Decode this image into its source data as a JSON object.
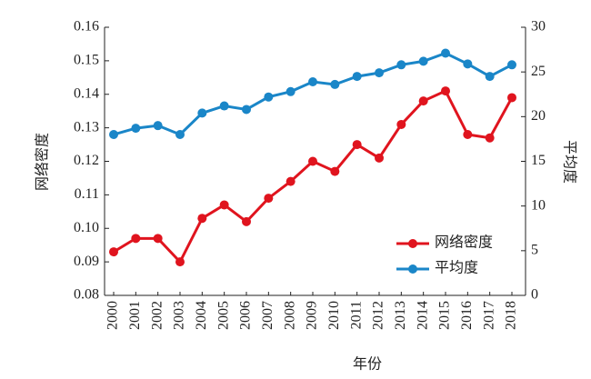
{
  "chart_data": {
    "type": "line",
    "categories": [
      "2000",
      "2001",
      "2002",
      "2003",
      "2004",
      "2005",
      "2006",
      "2007",
      "2008",
      "2009",
      "2010",
      "2011",
      "2012",
      "2013",
      "2014",
      "2015",
      "2016",
      "2017",
      "2018"
    ],
    "series": [
      {
        "name": "网络密度",
        "color": "#e0141e",
        "values": [
          0.093,
          0.097,
          0.097,
          0.09,
          0.103,
          0.107,
          0.102,
          0.109,
          0.114,
          0.12,
          0.117,
          0.125,
          0.121,
          0.131,
          0.138,
          0.141,
          0.128,
          0.127,
          0.139
        ]
      },
      {
        "name": "平均度",
        "color": "#1a86c8",
        "axis": "y2",
        "values": [
          18.0,
          18.7,
          19.0,
          18.0,
          20.4,
          21.2,
          20.8,
          22.2,
          22.8,
          23.9,
          23.6,
          24.5,
          24.9,
          25.8,
          26.2,
          27.1,
          25.9,
          24.5,
          25.8
        ]
      }
    ],
    "xlabel": "年份",
    "ylabel": "网络密度",
    "y2label": "平均度",
    "ylim": [
      0.08,
      0.16
    ],
    "yticks": [
      0.08,
      0.09,
      {
        "value": 0.1,
        "label": "0.10"
      },
      0.11,
      0.12,
      0.13,
      0.14,
      0.15,
      0.16
    ],
    "y2lim": [
      0,
      30
    ],
    "y2ticks": [
      0,
      5,
      10,
      15,
      20,
      25,
      30
    ],
    "legend": "lower right"
  }
}
